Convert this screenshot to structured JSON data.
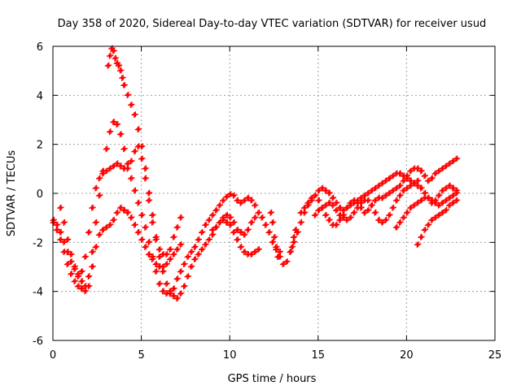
{
  "chart_data": {
    "type": "scatter",
    "title": "Day 358 of 2020, Sidereal Day-to-day VTEC variation (SDTVAR) for receiver usud",
    "xlabel": "GPS time / hours",
    "ylabel": "SDTVAR / TECUs",
    "xlim": [
      0,
      25
    ],
    "ylim": [
      -6,
      6
    ],
    "xticks": [
      0,
      5,
      10,
      15,
      20,
      25
    ],
    "yticks": [
      -6,
      -4,
      -2,
      0,
      2,
      4,
      6
    ],
    "grid": true,
    "marker": "+",
    "color": "#ff0000",
    "series": [
      {
        "x": [
          0.0,
          0.2,
          0.4,
          0.6,
          0.8,
          1.0,
          1.2,
          1.4,
          1.6,
          1.8,
          2.0,
          2.2,
          2.4,
          2.6,
          2.8,
          3.0,
          3.2,
          3.4,
          3.6,
          3.8,
          4.0,
          4.2,
          4.4,
          4.6,
          4.8,
          5.0,
          5.2,
          5.4,
          5.6,
          5.8,
          6.0,
          6.2,
          6.4,
          6.6,
          6.8,
          7.0,
          7.2
        ],
        "y": [
          -1.1,
          -1.3,
          -1.6,
          -2.0,
          -2.4,
          -2.8,
          -3.1,
          -3.3,
          -3.2,
          -2.6,
          -1.6,
          -0.6,
          0.2,
          0.6,
          0.8,
          0.9,
          1.0,
          1.1,
          1.2,
          1.1,
          1.0,
          1.0,
          1.3,
          1.7,
          1.9,
          1.4,
          0.6,
          -0.3,
          -1.2,
          -1.9,
          -2.3,
          -2.5,
          -2.5,
          -2.3,
          -1.8,
          -1.4,
          -1.0
        ]
      },
      {
        "x": [
          0.4,
          0.6,
          0.8,
          1.0,
          1.2,
          1.4,
          1.6,
          1.8,
          2.0,
          2.2,
          2.4,
          2.6,
          2.8,
          3.0,
          3.2,
          3.4,
          3.6,
          3.8,
          4.0,
          4.2,
          4.4,
          4.6,
          4.8,
          5.0,
          5.2,
          5.4,
          5.6,
          5.8,
          6.0,
          6.2,
          6.4,
          6.6,
          6.8,
          7.0,
          7.2,
          7.4,
          7.6,
          7.8,
          8.0,
          8.2,
          8.4,
          8.6,
          8.8,
          9.0,
          9.2,
          9.4,
          9.6,
          9.8,
          10.0,
          10.2,
          10.4,
          10.6,
          10.8,
          11.0,
          11.2,
          11.4
        ],
        "y": [
          -0.6,
          -1.2,
          -1.9,
          -2.5,
          -3.0,
          -3.4,
          -3.6,
          -3.8,
          -3.4,
          -2.4,
          -1.2,
          -0.1,
          0.9,
          1.8,
          2.5,
          2.9,
          2.8,
          2.4,
          1.8,
          1.2,
          0.6,
          0.1,
          -0.4,
          -0.9,
          -1.4,
          -2.0,
          -2.6,
          -3.2,
          -3.7,
          -4.0,
          -4.1,
          -4.1,
          -3.9,
          -3.5,
          -3.2,
          -2.9,
          -2.6,
          -2.4,
          -2.2,
          -1.9,
          -1.6,
          -1.3,
          -1.1,
          -0.9,
          -0.7,
          -0.5,
          -0.3,
          -0.15,
          -0.05,
          -0.1,
          -0.3,
          -0.4,
          -0.3,
          -0.2,
          -0.3,
          -0.5
        ]
      },
      {
        "x": [
          0.0,
          0.2,
          0.4,
          0.6,
          0.8,
          1.0,
          1.2,
          1.4,
          1.6,
          1.8,
          2.0,
          2.2,
          2.4,
          2.6,
          2.8,
          3.0,
          3.2,
          3.4,
          3.6,
          3.8,
          4.0,
          4.2,
          4.4,
          4.6,
          4.8,
          5.0,
          5.2,
          5.4,
          5.6,
          5.8,
          6.0,
          6.2,
          6.4,
          6.6,
          6.8,
          7.0,
          7.2
        ],
        "y": [
          -1.2,
          -1.5,
          -1.9,
          -2.4,
          -2.9,
          -3.3,
          -3.6,
          -3.8,
          -3.9,
          -4.0,
          -3.8,
          -3.0,
          -2.2,
          -1.7,
          -1.5,
          -1.4,
          -1.3,
          -1.1,
          -0.8,
          -0.6,
          -0.7,
          -0.8,
          -1.0,
          -1.3,
          -1.6,
          -1.9,
          -2.2,
          -2.5,
          -2.7,
          -2.9,
          -3.0,
          -3.0,
          -2.9,
          -2.7,
          -2.5,
          -2.3,
          -2.1
        ]
      },
      {
        "x": [
          3.1,
          3.2,
          3.3,
          3.4,
          3.5,
          3.6,
          3.7,
          3.8,
          3.9,
          4.0,
          4.2,
          4.4,
          4.6,
          4.8,
          5.0,
          5.2,
          5.4,
          5.6,
          5.8,
          6.0,
          6.2,
          6.4,
          6.6,
          6.8,
          7.0,
          7.2,
          7.4,
          7.6,
          7.8,
          8.0,
          8.2,
          8.4,
          8.6,
          8.8,
          9.0,
          9.2,
          9.4,
          9.6,
          9.8,
          10.0,
          10.2,
          10.4,
          10.6,
          10.8,
          11.0,
          11.2,
          11.4,
          11.6
        ],
        "y": [
          5.2,
          5.6,
          5.9,
          5.8,
          5.5,
          5.3,
          5.2,
          5.0,
          4.7,
          4.4,
          4.0,
          3.6,
          3.2,
          2.6,
          1.9,
          1.0,
          0.0,
          -0.9,
          -1.8,
          -2.6,
          -3.2,
          -3.7,
          -4.0,
          -4.2,
          -4.3,
          -4.1,
          -3.8,
          -3.4,
          -3.0,
          -2.7,
          -2.5,
          -2.3,
          -2.1,
          -1.9,
          -1.7,
          -1.4,
          -1.2,
          -1.1,
          -1.2,
          -1.3,
          -1.6,
          -1.9,
          -2.2,
          -2.4,
          -2.5,
          -2.5,
          -2.4,
          -2.3
        ]
      },
      {
        "x": [
          9.0,
          9.2,
          9.4,
          9.6,
          9.8,
          10.0,
          10.2,
          10.4,
          10.6,
          10.8,
          11.0,
          11.2,
          11.4,
          11.6,
          11.8,
          12.0,
          12.2,
          12.4,
          12.6,
          12.8,
          13.0,
          13.2,
          13.4,
          13.6,
          13.8,
          14.0,
          14.2,
          14.4,
          14.6,
          14.8,
          15.0,
          15.2,
          15.4,
          15.6,
          15.8,
          16.0,
          16.2,
          16.4,
          16.6,
          16.8,
          17.0,
          17.2,
          17.4,
          17.6,
          17.8,
          18.0,
          18.2,
          18.4,
          18.6,
          18.8,
          19.0,
          19.2,
          19.4,
          19.6,
          19.8,
          20.0,
          20.2,
          20.4,
          20.6
        ],
        "y": [
          -1.5,
          -1.4,
          -1.2,
          -1.0,
          -0.9,
          -1.0,
          -1.2,
          -1.5,
          -1.6,
          -1.7,
          -1.5,
          -1.2,
          -1.0,
          -0.8,
          -1.0,
          -1.3,
          -1.6,
          -2.0,
          -2.3,
          -2.6,
          -2.9,
          -2.8,
          -2.4,
          -2.0,
          -1.6,
          -1.2,
          -0.8,
          -0.5,
          -0.3,
          -0.1,
          0.1,
          0.2,
          0.1,
          0.0,
          -0.2,
          -0.4,
          -0.6,
          -0.7,
          -0.6,
          -0.5,
          -0.4,
          -0.3,
          -0.2,
          -0.1,
          0.0,
          0.1,
          0.2,
          0.3,
          0.4,
          0.5,
          0.6,
          0.7,
          0.8,
          0.8,
          0.7,
          0.6,
          0.5,
          0.4,
          0.5
        ]
      },
      {
        "x": [
          14.0,
          14.2,
          14.4,
          14.6,
          14.8,
          15.0,
          15.2,
          15.4,
          15.6,
          15.8,
          16.0,
          16.2,
          16.4,
          16.6,
          16.8,
          17.0,
          17.2,
          17.4,
          17.6,
          17.8,
          18.0,
          18.2,
          18.4,
          18.6,
          18.8,
          19.0,
          19.2,
          19.4,
          19.6,
          19.8,
          20.0,
          20.2,
          20.4,
          20.6,
          20.8,
          21.0,
          21.2,
          21.4,
          21.6,
          21.8,
          22.0,
          22.2,
          22.4,
          22.6,
          22.8
        ],
        "y": [
          -0.8,
          -0.6,
          -0.4,
          -0.2,
          -0.1,
          -0.3,
          -0.6,
          -0.9,
          -1.1,
          -1.3,
          -1.3,
          -1.1,
          -0.9,
          -0.6,
          -0.4,
          -0.3,
          -0.4,
          -0.6,
          -0.8,
          -0.7,
          -0.5,
          -0.3,
          -0.2,
          -0.2,
          -0.1,
          0.0,
          0.1,
          0.2,
          0.3,
          0.5,
          0.7,
          0.9,
          1.0,
          1.0,
          0.9,
          0.7,
          0.5,
          0.6,
          0.8,
          0.9,
          1.0,
          1.1,
          1.2,
          1.3,
          1.4
        ]
      },
      {
        "x": [
          14.8,
          15.0,
          15.2,
          15.4,
          15.6,
          15.8,
          16.0,
          16.2,
          16.4,
          16.6,
          16.8,
          17.0,
          17.2,
          17.4,
          17.6,
          17.8,
          18.0,
          18.2,
          18.4,
          18.6,
          18.8,
          19.0,
          19.2,
          19.4,
          19.6,
          19.8,
          20.0,
          20.2,
          20.4,
          20.6,
          20.8,
          21.0,
          21.2,
          21.4,
          21.6,
          21.8,
          22.0,
          22.2,
          22.4,
          22.6,
          22.8
        ],
        "y": [
          -0.9,
          -0.7,
          -0.6,
          -0.5,
          -0.4,
          -0.5,
          -0.7,
          -0.9,
          -1.0,
          -1.1,
          -1.0,
          -0.8,
          -0.6,
          -0.4,
          -0.3,
          -0.3,
          -0.5,
          -0.8,
          -1.1,
          -1.2,
          -1.1,
          -0.9,
          -0.6,
          -0.3,
          -0.1,
          0.1,
          0.2,
          0.3,
          0.4,
          0.3,
          0.2,
          0.0,
          -0.2,
          -0.4,
          -0.3,
          -0.1,
          0.1,
          0.2,
          0.3,
          0.2,
          0.1
        ]
      },
      {
        "x": [
          19.4,
          19.6,
          19.8,
          20.0,
          20.2,
          20.4,
          20.6,
          20.8,
          21.0,
          21.2,
          21.4,
          21.6,
          21.8,
          22.0,
          22.2,
          22.4,
          22.6,
          22.8
        ],
        "y": [
          -1.4,
          -1.2,
          -1.0,
          -0.8,
          -0.6,
          -0.5,
          -0.4,
          -0.3,
          -0.2,
          -0.2,
          -0.3,
          -0.4,
          -0.5,
          -0.4,
          -0.3,
          -0.2,
          -0.1,
          0.0
        ]
      },
      {
        "x": [
          20.6,
          20.8,
          21.0,
          21.2,
          21.4,
          21.6,
          21.8,
          22.0,
          22.2,
          22.4,
          22.6,
          22.8
        ],
        "y": [
          -2.1,
          -1.8,
          -1.5,
          -1.3,
          -1.1,
          -1.0,
          -0.9,
          -0.8,
          -0.7,
          -0.5,
          -0.4,
          -0.3
        ]
      },
      {
        "x": [
          12.3,
          12.4,
          12.5,
          12.6,
          12.7,
          12.8,
          13.4,
          13.5,
          13.6,
          13.7,
          13.8
        ],
        "y": [
          -0.8,
          -1.2,
          -1.8,
          -2.2,
          -2.6,
          -2.4,
          -2.4,
          -2.2,
          -1.8,
          -1.5,
          -1.6
        ]
      }
    ]
  }
}
